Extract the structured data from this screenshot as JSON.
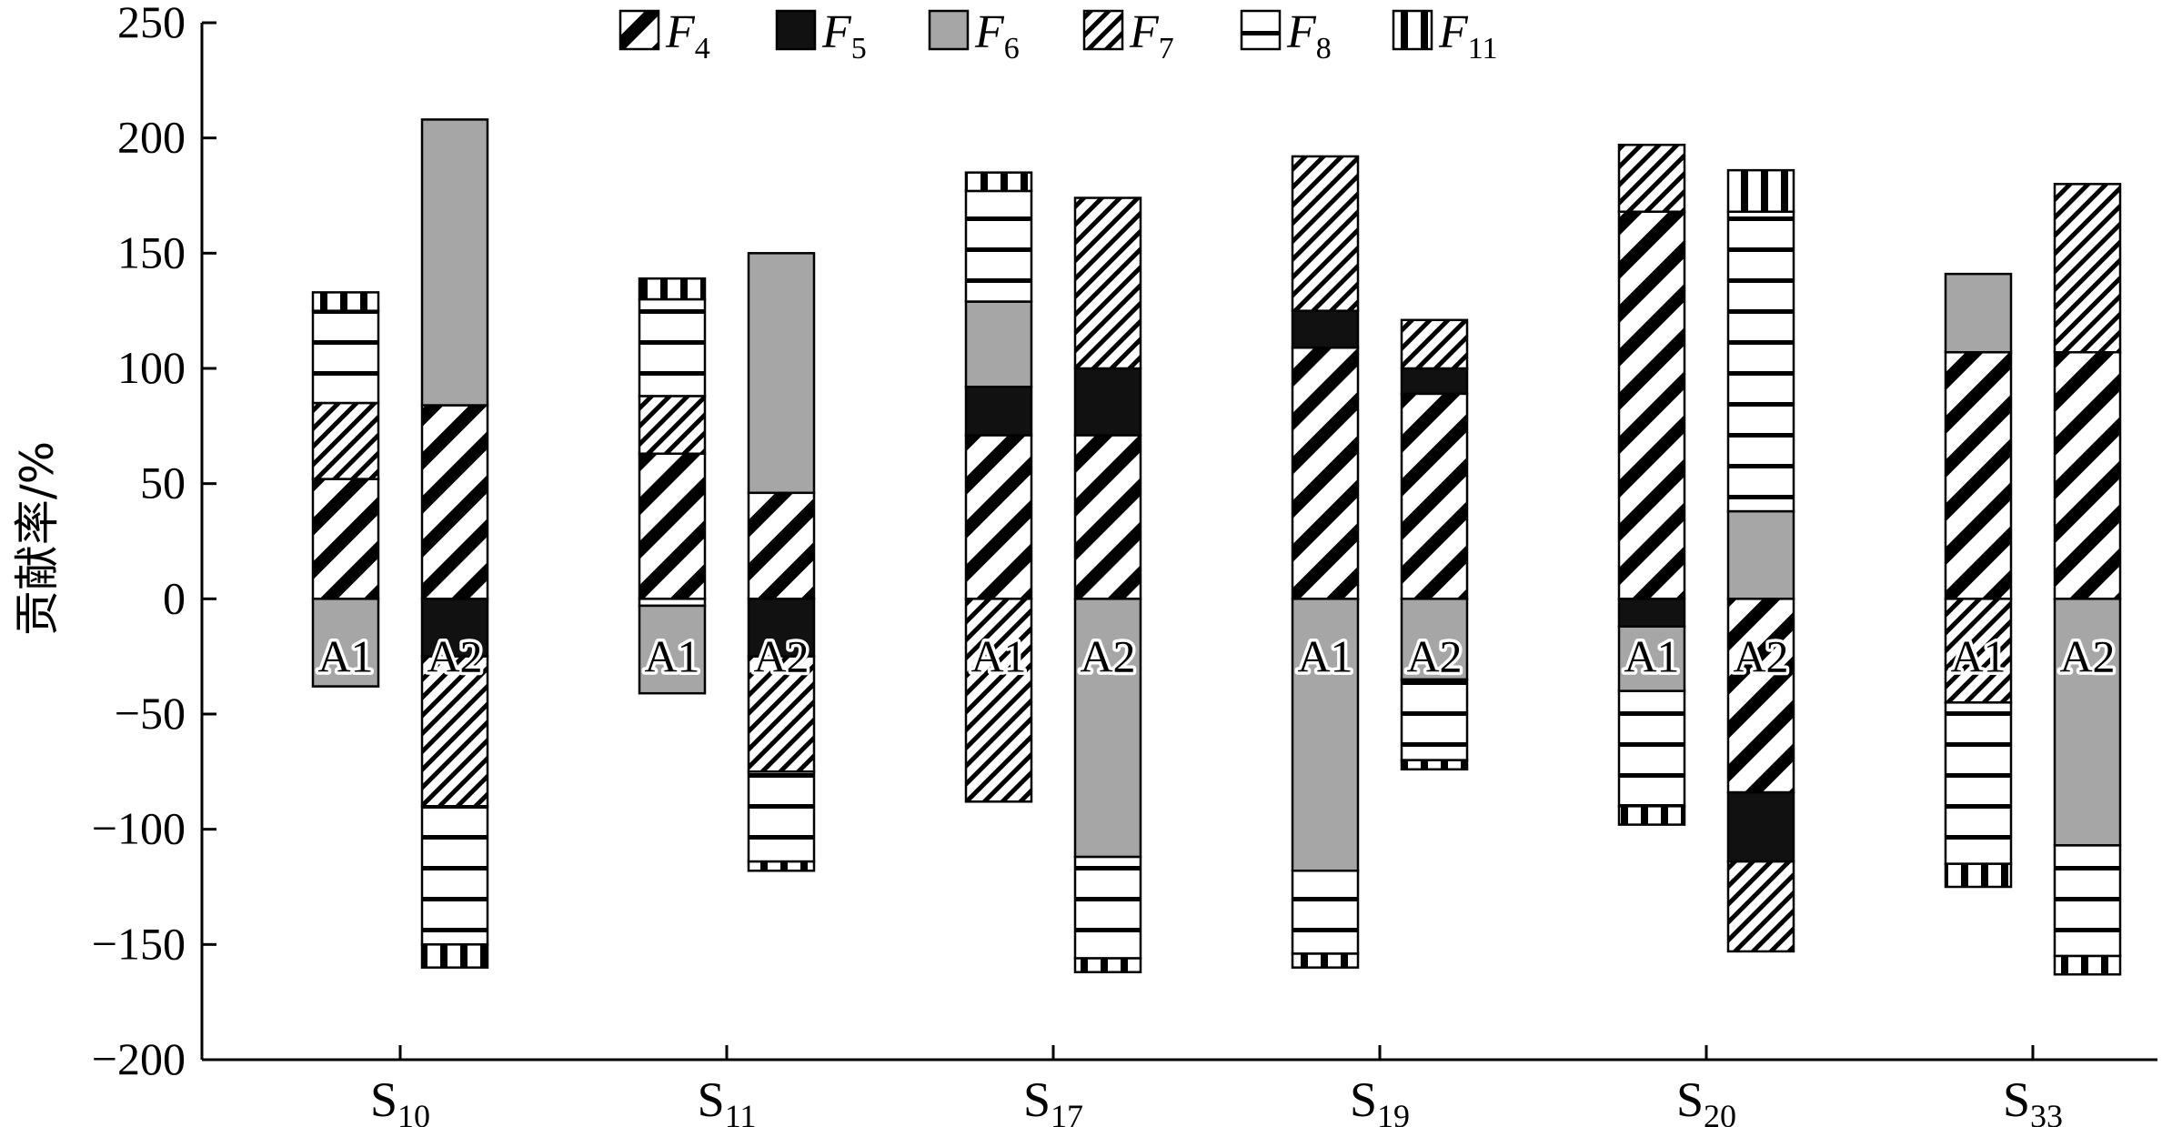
{
  "chart_data": {
    "type": "bar",
    "stacked": true,
    "diverging": true,
    "ylabel": "贡献率/%",
    "ylim": [
      -200,
      250
    ],
    "yticks": [
      -200,
      -150,
      -100,
      -50,
      0,
      50,
      100,
      150,
      200,
      250
    ],
    "ytick_labels": [
      "−200",
      "−150",
      "−100",
      "−50",
      "0",
      "50",
      "100",
      "150",
      "200",
      "250"
    ],
    "legend_position": "top-center",
    "legend": [
      {
        "key": "F4",
        "base": "F",
        "sub": "4",
        "pattern": "diag-right-bold"
      },
      {
        "key": "F5",
        "base": "F",
        "sub": "5",
        "pattern": "solid-black"
      },
      {
        "key": "F6",
        "base": "F",
        "sub": "6",
        "pattern": "solid-gray"
      },
      {
        "key": "F7",
        "base": "F",
        "sub": "7",
        "pattern": "diag-right-fine"
      },
      {
        "key": "F8",
        "base": "F",
        "sub": "8",
        "pattern": "horizontal"
      },
      {
        "key": "F11",
        "base": "F",
        "sub": "11",
        "pattern": "vertical"
      }
    ],
    "categories": [
      {
        "label_base": "S",
        "label_sub": "10",
        "bars": [
          {
            "label": "A1",
            "positive": [
              {
                "f": "F4",
                "v": 52
              },
              {
                "f": "F7",
                "v": 33
              },
              {
                "f": "F8",
                "v": 40
              },
              {
                "f": "F11",
                "v": 8
              }
            ],
            "negative": [
              {
                "f": "F6",
                "v": -38
              }
            ]
          },
          {
            "label": "A2",
            "positive": [
              {
                "f": "F4",
                "v": 84
              },
              {
                "f": "F6",
                "v": 124
              }
            ],
            "negative": [
              {
                "f": "F5",
                "v": -25
              },
              {
                "f": "F7",
                "v": -65
              },
              {
                "f": "F8",
                "v": -60
              },
              {
                "f": "F11",
                "v": -10
              }
            ]
          }
        ]
      },
      {
        "label_base": "S",
        "label_sub": "11",
        "bars": [
          {
            "label": "A1",
            "positive": [
              {
                "f": "F4",
                "v": 63
              },
              {
                "f": "F7",
                "v": 25
              },
              {
                "f": "F8",
                "v": 42
              },
              {
                "f": "F11",
                "v": 9
              }
            ],
            "negative": [
              {
                "f": "F8",
                "v": -3
              },
              {
                "f": "F6",
                "v": -38
              }
            ]
          },
          {
            "label": "A2",
            "positive": [
              {
                "f": "F4",
                "v": 46
              },
              {
                "f": "F6",
                "v": 104
              }
            ],
            "negative": [
              {
                "f": "F5",
                "v": -25
              },
              {
                "f": "F7",
                "v": -50
              },
              {
                "f": "F8",
                "v": -39
              },
              {
                "f": "F11",
                "v": -4
              }
            ]
          }
        ]
      },
      {
        "label_base": "S",
        "label_sub": "17",
        "bars": [
          {
            "label": "A1",
            "positive": [
              {
                "f": "F4",
                "v": 71
              },
              {
                "f": "F5",
                "v": 21
              },
              {
                "f": "F6",
                "v": 37
              },
              {
                "f": "F8",
                "v": 48
              },
              {
                "f": "F11",
                "v": 8
              }
            ],
            "negative": [
              {
                "f": "F7",
                "v": -88
              }
            ]
          },
          {
            "label": "A2",
            "positive": [
              {
                "f": "F4",
                "v": 71
              },
              {
                "f": "F5",
                "v": 29
              },
              {
                "f": "F7",
                "v": 74
              }
            ],
            "negative": [
              {
                "f": "F6",
                "v": -112
              },
              {
                "f": "F8",
                "v": -44
              },
              {
                "f": "F11",
                "v": -6
              }
            ]
          }
        ]
      },
      {
        "label_base": "S",
        "label_sub": "19",
        "bars": [
          {
            "label": "A1",
            "positive": [
              {
                "f": "F4",
                "v": 109
              },
              {
                "f": "F5",
                "v": 16
              },
              {
                "f": "F7",
                "v": 67
              }
            ],
            "negative": [
              {
                "f": "F6",
                "v": -118
              },
              {
                "f": "F8",
                "v": -36
              },
              {
                "f": "F11",
                "v": -6
              }
            ]
          },
          {
            "label": "A2",
            "positive": [
              {
                "f": "F4",
                "v": 89
              },
              {
                "f": "F5",
                "v": 11
              },
              {
                "f": "F7",
                "v": 21
              }
            ],
            "negative": [
              {
                "f": "F6",
                "v": -35
              },
              {
                "f": "F8",
                "v": -35
              },
              {
                "f": "F11",
                "v": -4
              }
            ]
          }
        ]
      },
      {
        "label_base": "S",
        "label_sub": "20",
        "bars": [
          {
            "label": "A1",
            "positive": [
              {
                "f": "F4",
                "v": 168
              },
              {
                "f": "F7",
                "v": 29
              }
            ],
            "negative": [
              {
                "f": "F5",
                "v": -12
              },
              {
                "f": "F6",
                "v": -28
              },
              {
                "f": "F8",
                "v": -50
              },
              {
                "f": "F11",
                "v": -8
              }
            ]
          },
          {
            "label": "A2",
            "positive": [
              {
                "f": "F6",
                "v": 38
              },
              {
                "f": "F8",
                "v": 130
              },
              {
                "f": "F11",
                "v": 18
              }
            ],
            "negative": [
              {
                "f": "F4",
                "v": -84
              },
              {
                "f": "F5",
                "v": -30
              },
              {
                "f": "F7",
                "v": -39
              }
            ]
          }
        ]
      },
      {
        "label_base": "S",
        "label_sub": "33",
        "bars": [
          {
            "label": "A1",
            "positive": [
              {
                "f": "F4",
                "v": 107
              },
              {
                "f": "F6",
                "v": 34
              }
            ],
            "negative": [
              {
                "f": "F7",
                "v": -45
              },
              {
                "f": "F8",
                "v": -70
              },
              {
                "f": "F11",
                "v": -10
              }
            ]
          },
          {
            "label": "A2",
            "positive": [
              {
                "f": "F4",
                "v": 107
              },
              {
                "f": "F7",
                "v": 73
              }
            ],
            "negative": [
              {
                "f": "F6",
                "v": -107
              },
              {
                "f": "F8",
                "v": -48
              },
              {
                "f": "F11",
                "v": -8
              }
            ]
          }
        ]
      }
    ]
  }
}
